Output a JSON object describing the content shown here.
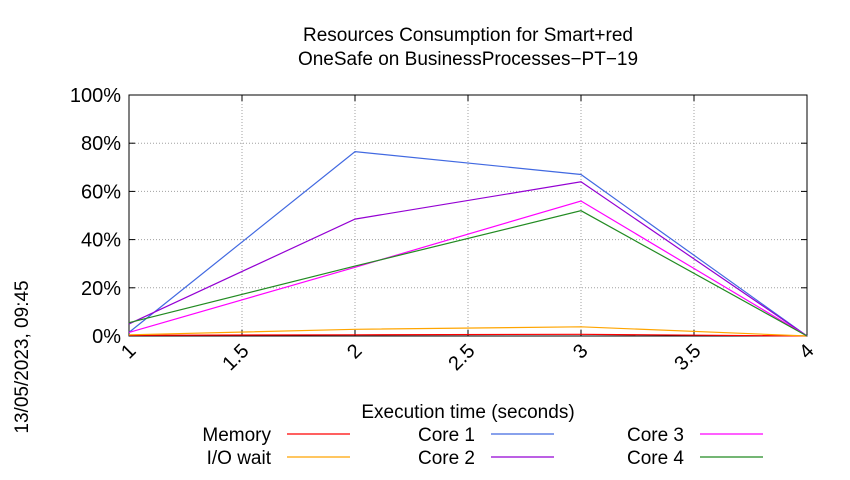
{
  "chart_data": {
    "type": "line",
    "title_line1": "Resources Consumption for Smart+red",
    "title_line2": "OneSafe on BusinessProcesses−PT−19",
    "xlabel": "Execution time (seconds)",
    "ylabel": "",
    "side_label": "13/05/2023, 09:45",
    "xlim": [
      1,
      4
    ],
    "ylim": [
      0,
      100
    ],
    "x_ticks": [
      1,
      1.5,
      2,
      2.5,
      3,
      3.5,
      4
    ],
    "x_tick_labels": [
      "1",
      "1.5",
      "2",
      "2.5",
      "3",
      "3.5",
      "4"
    ],
    "y_ticks": [
      0,
      20,
      40,
      60,
      80,
      100
    ],
    "y_tick_labels": [
      "0%",
      "20%",
      "40%",
      "60%",
      "80%",
      "100%"
    ],
    "grid": true,
    "legend_position": "bottom",
    "series": [
      {
        "name": "Memory",
        "color": "#ff0000",
        "x": [
          1,
          2,
          3,
          4
        ],
        "y": [
          0.3,
          0.5,
          0.7,
          0
        ]
      },
      {
        "name": "I/O wait",
        "color": "#ffa500",
        "x": [
          1,
          2,
          3,
          4
        ],
        "y": [
          0.5,
          2.8,
          3.8,
          0
        ]
      },
      {
        "name": "Core 1",
        "color": "#4169e1",
        "x": [
          1,
          2,
          3,
          4
        ],
        "y": [
          1.5,
          76.5,
          67,
          0
        ]
      },
      {
        "name": "Core 2",
        "color": "#9400d3",
        "x": [
          1,
          2,
          3,
          4
        ],
        "y": [
          5,
          48.5,
          64,
          0
        ]
      },
      {
        "name": "Core 3",
        "color": "#ff00ff",
        "x": [
          1,
          2,
          3,
          4
        ],
        "y": [
          1.5,
          28.5,
          56,
          0
        ]
      },
      {
        "name": "Core 4",
        "color": "#228b22",
        "x": [
          1,
          2,
          3,
          4
        ],
        "y": [
          5.5,
          29,
          52,
          0
        ]
      }
    ]
  }
}
